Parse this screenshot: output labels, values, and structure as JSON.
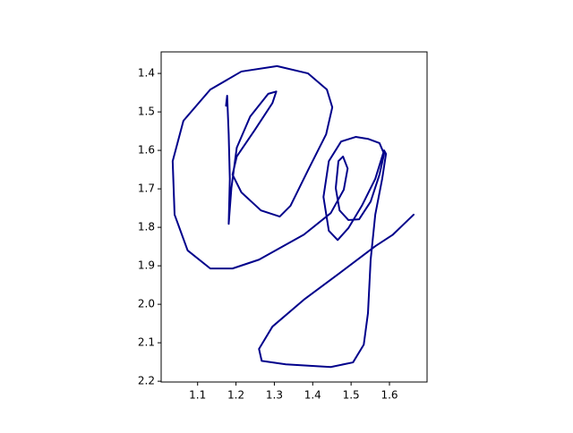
{
  "chart_data": {
    "type": "line",
    "color": "#00008b",
    "line_width": 2,
    "x": [
      1.174,
      1.177,
      1.181,
      1.184,
      1.181,
      1.188,
      1.202,
      1.237,
      1.284,
      1.305,
      1.295,
      1.249,
      1.202,
      1.191,
      1.214,
      1.265,
      1.314,
      1.342,
      1.388,
      1.435,
      1.451,
      1.437,
      1.388,
      1.307,
      1.214,
      1.133,
      1.063,
      1.035,
      1.04,
      1.074,
      1.133,
      1.191,
      1.26,
      1.377,
      1.447,
      1.481,
      1.491,
      1.479,
      1.467,
      1.46,
      1.47,
      1.493,
      1.521,
      1.551,
      1.574,
      1.586,
      1.574,
      1.544,
      1.512,
      1.474,
      1.442,
      1.428,
      1.442,
      1.465,
      1.493,
      1.528,
      1.563,
      1.586,
      1.591,
      1.581,
      1.563,
      1.551,
      1.544,
      1.533,
      1.505,
      1.447,
      1.33,
      1.267,
      1.26,
      1.295,
      1.377,
      1.47,
      1.563,
      1.609,
      1.663
    ],
    "y": [
      1.484,
      1.458,
      1.558,
      1.674,
      1.791,
      1.698,
      1.593,
      1.512,
      1.453,
      1.447,
      1.477,
      1.547,
      1.616,
      1.663,
      1.709,
      1.756,
      1.772,
      1.744,
      1.651,
      1.558,
      1.488,
      1.442,
      1.4,
      1.381,
      1.395,
      1.442,
      1.523,
      1.628,
      1.767,
      1.86,
      1.907,
      1.907,
      1.884,
      1.819,
      1.763,
      1.702,
      1.647,
      1.616,
      1.628,
      1.698,
      1.756,
      1.781,
      1.779,
      1.733,
      1.663,
      1.609,
      1.581,
      1.57,
      1.565,
      1.577,
      1.628,
      1.721,
      1.809,
      1.833,
      1.802,
      1.744,
      1.674,
      1.6,
      1.609,
      1.674,
      1.767,
      1.884,
      2.023,
      2.105,
      2.151,
      2.163,
      2.156,
      2.147,
      2.116,
      2.058,
      1.988,
      1.919,
      1.849,
      1.819,
      1.767
    ],
    "xlim": [
      1.005,
      1.698
    ],
    "ylim": [
      2.202,
      1.344
    ],
    "xticks": [
      1.1,
      1.2,
      1.3,
      1.4,
      1.5,
      1.6
    ],
    "yticks": [
      1.4,
      1.5,
      1.6,
      1.7,
      1.8,
      1.9,
      {
        "value": 2,
        "label": "2.0"
      },
      2.1,
      2.2
    ]
  }
}
